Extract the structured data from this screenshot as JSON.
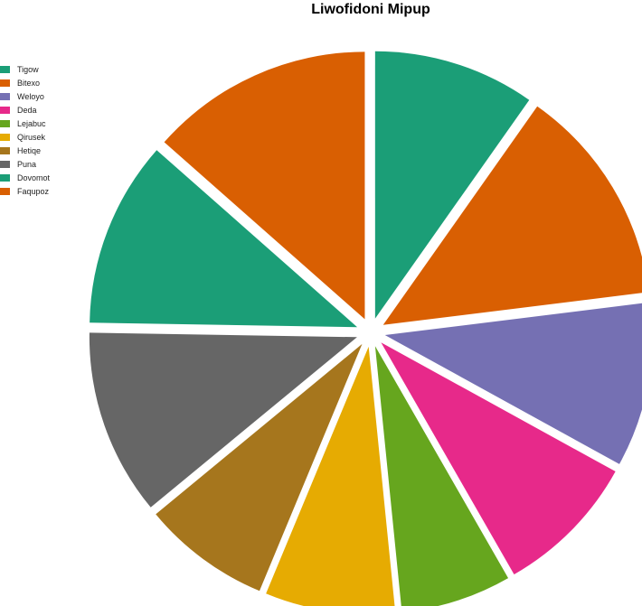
{
  "chart_data": {
    "type": "pie",
    "title": "Liwofidoni Mipup",
    "legend_position": "top-left",
    "exploded": true,
    "slices": [
      {
        "label": "Tigow",
        "value": 9.2,
        "color": "#1b9e77"
      },
      {
        "label": "Bitexo",
        "value": 12.5,
        "color": "#d95f02"
      },
      {
        "label": "Weloyo",
        "value": 9.4,
        "color": "#7570b3"
      },
      {
        "label": "Deda",
        "value": 8.2,
        "color": "#e7298a"
      },
      {
        "label": "Lejabuc",
        "value": 6.3,
        "color": "#66a61e"
      },
      {
        "label": "Qirusek",
        "value": 7.4,
        "color": "#e6ab02"
      },
      {
        "label": "Hetiqe",
        "value": 7.3,
        "color": "#a6761d"
      },
      {
        "label": "Puna",
        "value": 10.6,
        "color": "#666666"
      },
      {
        "label": "Dovomot",
        "value": 10.6,
        "color": "#1b9e77"
      },
      {
        "label": "Faqupoz",
        "value": 12.7,
        "color": "#d95f02"
      }
    ]
  }
}
